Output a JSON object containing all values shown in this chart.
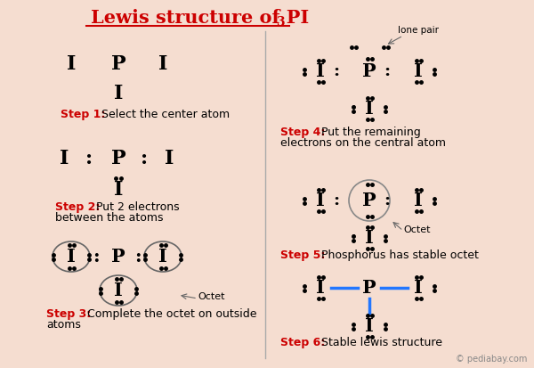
{
  "title": "Lewis structure of PI",
  "title_sub": "3",
  "bg_color": "#f5ddd0",
  "title_color": "#cc0000",
  "step_label_color": "#cc0000",
  "atom_color": "#000000",
  "dot_color": "#000000",
  "bond_color": "#2277ff",
  "divider_color": "#aaaaaa",
  "watermark": "© pediabay.com",
  "octet_label": "Octet",
  "lone_pair_label": "lone pair",
  "step1_label": "Step 1:",
  "step1_desc": " Select the center atom",
  "step2_label": "Step 2:",
  "step2_desc1": " Put 2 electrons",
  "step2_desc2": "between the atoms",
  "step3_label": "Step 3:",
  "step3_desc1": " Complete the octet on outside",
  "step3_desc2": "atoms",
  "step4_label": "Step 4:",
  "step4_desc1": " Put the remaining",
  "step4_desc2": "electrons on the central atom",
  "step5_label": "Step 5:",
  "step5_desc": " Phosphorus has stable octet",
  "step6_label": "Step 6:",
  "step6_desc": " Stable lewis structure"
}
